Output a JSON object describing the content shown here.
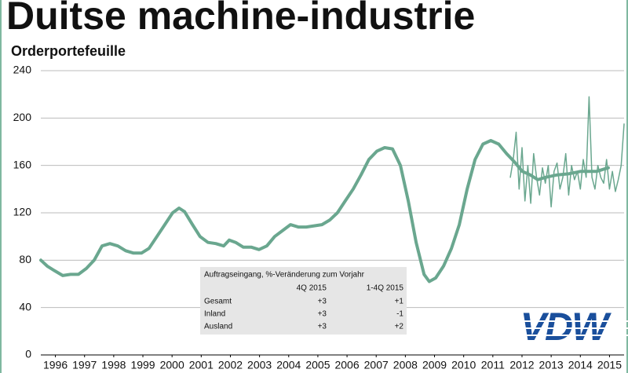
{
  "chart_data": {
    "type": "line",
    "title": "Duitse machine-industrie",
    "subtitle": "Orderportefeuille",
    "xlim": [
      1996,
      2016
    ],
    "xticks": [
      {
        "value": 1996.5,
        "label": "1996"
      },
      {
        "value": 1997.5,
        "label": "1997"
      },
      {
        "value": 1998.5,
        "label": "1998"
      },
      {
        "value": 1999.5,
        "label": "1999"
      },
      {
        "value": 2000.5,
        "label": "2000"
      },
      {
        "value": 2001.5,
        "label": "2001"
      },
      {
        "value": 2002.5,
        "label": "2002"
      },
      {
        "value": 2003.5,
        "label": "2003"
      },
      {
        "value": 2004.5,
        "label": "2004"
      },
      {
        "value": 2005.5,
        "label": "2005"
      },
      {
        "value": 2006.5,
        "label": "2006"
      },
      {
        "value": 2007.5,
        "label": "2007"
      },
      {
        "value": 2008.5,
        "label": "2008"
      },
      {
        "value": 2009.5,
        "label": "2009"
      },
      {
        "value": 2010.5,
        "label": "2010"
      },
      {
        "value": 2011.5,
        "label": "2011"
      },
      {
        "value": 2012.5,
        "label": "2012"
      },
      {
        "value": 2013.5,
        "label": "2013"
      },
      {
        "value": 2014.5,
        "label": "2014"
      },
      {
        "value": 2015.5,
        "label": "2015"
      }
    ],
    "ylim": [
      0,
      240
    ],
    "yticks": [
      0,
      40,
      80,
      120,
      160,
      200,
      240
    ],
    "grid": true,
    "series": [
      {
        "color": "#6aa78f",
        "width": 4,
        "x": [
          1996.0,
          1996.22,
          1996.48,
          1996.75,
          1997.02,
          1997.29,
          1997.56,
          1997.83,
          1998.1,
          1998.37,
          1998.64,
          1998.91,
          1999.18,
          1999.45,
          1999.71,
          1999.98,
          2000.25,
          2000.52,
          2000.74,
          2000.93,
          2001.2,
          2001.46,
          2001.73,
          2002.0,
          2002.27,
          2002.46,
          2002.68,
          2002.94,
          2003.21,
          2003.48,
          2003.75,
          2004.02,
          2004.29,
          2004.56,
          2004.83,
          2005.1,
          2005.37,
          2005.64,
          2005.91,
          2006.17,
          2006.44,
          2006.71,
          2006.98,
          2007.25,
          2007.52,
          2007.79,
          2008.06,
          2008.33,
          2008.6,
          2008.87,
          2009.14,
          2009.32,
          2009.54,
          2009.81,
          2010.08,
          2010.35,
          2010.62,
          2010.89,
          2011.16,
          2011.43,
          2011.7,
          2011.97,
          2012.24,
          2012.51,
          2012.78,
          2013.04,
          2013.31,
          2013.71,
          2014.12,
          2014.52,
          2015.06,
          2015.46
        ],
        "values": [
          80,
          75,
          71,
          67,
          68,
          68,
          73,
          80,
          92,
          94,
          92,
          88,
          86,
          86,
          90,
          100,
          110,
          120,
          124,
          121,
          110,
          100,
          95,
          94,
          92,
          97,
          95,
          91,
          91,
          89,
          92,
          100,
          105,
          110,
          108,
          108,
          109,
          110,
          114,
          120,
          130,
          140,
          152,
          165,
          172,
          175,
          174,
          160,
          130,
          95,
          68,
          62,
          65,
          75,
          90,
          110,
          140,
          165,
          178,
          181,
          178,
          170,
          163,
          155,
          152,
          148,
          150,
          152,
          153,
          155,
          155,
          158
        ]
      },
      {
        "color": "#6aa78f",
        "width": 1.5,
        "x": [
          2012.1,
          2012.2,
          2012.3,
          2012.4,
          2012.5,
          2012.6,
          2012.7,
          2012.8,
          2012.9,
          2013.0,
          2013.1,
          2013.2,
          2013.3,
          2013.4,
          2013.5,
          2013.6,
          2013.7,
          2013.8,
          2013.9,
          2014.0,
          2014.1,
          2014.2,
          2014.3,
          2014.4,
          2014.5,
          2014.6,
          2014.7,
          2014.8,
          2014.9,
          2015.0,
          2015.1,
          2015.2,
          2015.3,
          2015.4,
          2015.5,
          2015.6,
          2015.7,
          2015.8,
          2015.9,
          2016.0
        ],
        "values": [
          150,
          165,
          188,
          140,
          175,
          130,
          160,
          128,
          170,
          150,
          135,
          158,
          145,
          160,
          125,
          155,
          162,
          140,
          150,
          170,
          135,
          160,
          148,
          155,
          140,
          165,
          150,
          218,
          150,
          140,
          160,
          150,
          145,
          165,
          140,
          155,
          138,
          148,
          160,
          195
        ]
      }
    ]
  },
  "table": {
    "title": "Auftragseingang, %-Veränderung zum Vorjahr",
    "columns": [
      "4Q 2015",
      "1-4Q 2015"
    ],
    "rows": [
      [
        "Gesamt",
        "+3",
        "+1"
      ],
      [
        "Inland",
        "+3",
        "-1"
      ],
      [
        "Ausland",
        "+3",
        "+2"
      ]
    ]
  },
  "logo": "VDW"
}
